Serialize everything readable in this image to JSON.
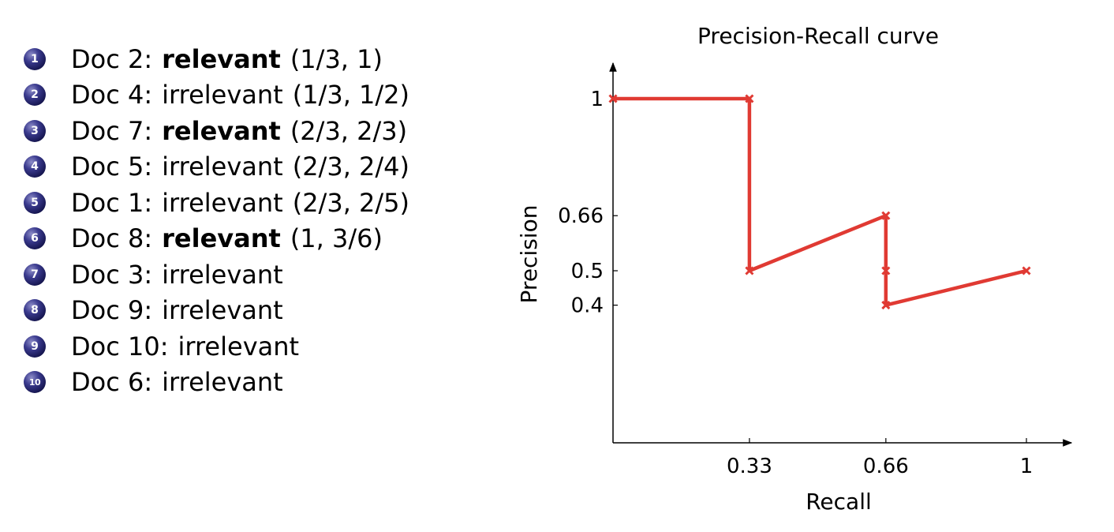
{
  "ranking": [
    {
      "rank": "1",
      "doc": "Doc 2:",
      "status": "relevant",
      "relevant": true,
      "coords": "(1/3, 1)"
    },
    {
      "rank": "2",
      "doc": "Doc 4:",
      "status": "irrelevant",
      "relevant": false,
      "coords": "(1/3, 1/2)"
    },
    {
      "rank": "3",
      "doc": "Doc 7:",
      "status": "relevant",
      "relevant": true,
      "coords": "(2/3, 2/3)"
    },
    {
      "rank": "4",
      "doc": "Doc 5:",
      "status": "irrelevant",
      "relevant": false,
      "coords": "(2/3, 2/4)"
    },
    {
      "rank": "5",
      "doc": "Doc 1:",
      "status": "irrelevant",
      "relevant": false,
      "coords": "(2/3, 2/5)"
    },
    {
      "rank": "6",
      "doc": "Doc 8:",
      "status": "relevant",
      "relevant": true,
      "coords": "(1, 3/6)"
    },
    {
      "rank": "7",
      "doc": "Doc 3:",
      "status": "irrelevant",
      "relevant": false,
      "coords": ""
    },
    {
      "rank": "8",
      "doc": "Doc 9:",
      "status": "irrelevant",
      "relevant": false,
      "coords": ""
    },
    {
      "rank": "9",
      "doc": "Doc 10:",
      "status": "irrelevant",
      "relevant": false,
      "coords": ""
    },
    {
      "rank": "10",
      "doc": "Doc 6:",
      "status": "irrelevant",
      "relevant": false,
      "coords": ""
    }
  ],
  "chart_data": {
    "type": "line",
    "title": "Precision-Recall curve",
    "xlabel": "Recall",
    "ylabel": "Precision",
    "xlim": [
      0,
      1.05
    ],
    "ylim": [
      0,
      1.1
    ],
    "xticks": [
      0.33,
      0.66,
      1
    ],
    "xtick_labels": [
      "0.33",
      "0.66",
      "1"
    ],
    "yticks": [
      1,
      0.66,
      0.5,
      0.4
    ],
    "ytick_labels": [
      "1",
      "0.66",
      "0.5",
      "0.4"
    ],
    "grid": false,
    "color": "#e03a33",
    "marker": "x",
    "series": [
      {
        "x": [
          0,
          0.33,
          0.33,
          0.66,
          0.66,
          0.66,
          1
        ],
        "y": [
          1,
          1,
          0.5,
          0.66,
          0.5,
          0.4,
          0.5
        ]
      }
    ]
  }
}
